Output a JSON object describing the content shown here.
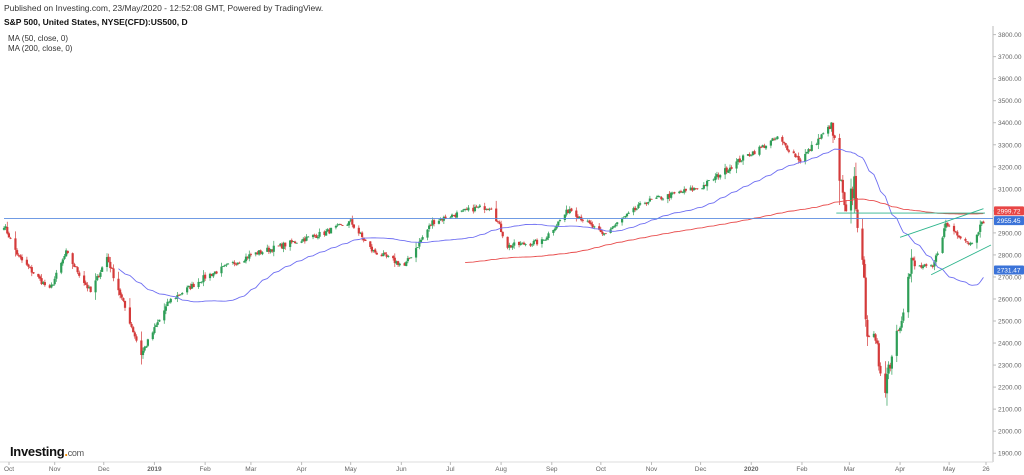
{
  "header": {
    "published": "Published on Investing.com, 23/May/2020 - 12:52:08 GMT, Powered by TradingView.",
    "symbol": "S&P 500, United States, NYSE(CFD):US500, D",
    "indicators": [
      "MA (50, close, 0)",
      "MA (200, close, 0)"
    ]
  },
  "logo": {
    "name": "Investing",
    "suffix": "com"
  },
  "colors": {
    "up": "#2e9e57",
    "down": "#d43a3a",
    "ma50": "#6f6ff2",
    "ma200": "#e84c4c",
    "hline": "#5b8de0",
    "trend": "#2eb58d",
    "price_box": "#3b73d8",
    "ma200_box": "#e84545",
    "ma50_box": "#3b73d8"
  },
  "chart_data": {
    "type": "candlestick",
    "x_tick_labels": [
      "Oct",
      "Nov",
      "Dec",
      "2019",
      "Feb",
      "Mar",
      "Apr",
      "May",
      "Jun",
      "Jul",
      "Aug",
      "Sep",
      "Oct",
      "Nov",
      "Dec",
      "2020",
      "Feb",
      "Mar",
      "Apr",
      "May",
      "26"
    ],
    "y_tick_labels": [
      "1900.00",
      "2000.00",
      "2100.00",
      "2200.00",
      "2300.00",
      "2400.00",
      "2500.00",
      "2600.00",
      "2700.00",
      "2800.00",
      "2900.00",
      "3000.00",
      "3100.00",
      "3200.00",
      "3300.00",
      "3400.00",
      "3500.00",
      "3600.00",
      "3700.00",
      "3800.00"
    ],
    "ylim": [
      1860,
      3830
    ],
    "keypoints": [
      {
        "date": "2018-10-01",
        "close": 2935
      },
      {
        "date": "2018-10-10",
        "close": 2790
      },
      {
        "date": "2018-10-29",
        "close": 2640
      },
      {
        "date": "2018-11-08",
        "close": 2810
      },
      {
        "date": "2018-11-23",
        "close": 2630
      },
      {
        "date": "2018-12-03",
        "close": 2790
      },
      {
        "date": "2018-12-24",
        "close": 2350
      },
      {
        "date": "2019-01-10",
        "close": 2590
      },
      {
        "date": "2019-02-01",
        "close": 2700
      },
      {
        "date": "2019-03-01",
        "close": 2800
      },
      {
        "date": "2019-04-15",
        "close": 2900
      },
      {
        "date": "2019-05-01",
        "close": 2950
      },
      {
        "date": "2019-05-14",
        "close": 2820
      },
      {
        "date": "2019-06-03",
        "close": 2750
      },
      {
        "date": "2019-06-20",
        "close": 2950
      },
      {
        "date": "2019-07-15",
        "close": 3010
      },
      {
        "date": "2019-07-26",
        "close": 3020
      },
      {
        "date": "2019-08-05",
        "close": 2840
      },
      {
        "date": "2019-08-26",
        "close": 2860
      },
      {
        "date": "2019-09-12",
        "close": 3010
      },
      {
        "date": "2019-10-02",
        "close": 2890
      },
      {
        "date": "2019-10-28",
        "close": 3040
      },
      {
        "date": "2019-12-02",
        "close": 3110
      },
      {
        "date": "2019-12-27",
        "close": 3240
      },
      {
        "date": "2020-01-17",
        "close": 3330
      },
      {
        "date": "2020-01-31",
        "close": 3230
      },
      {
        "date": "2020-02-19",
        "close": 3390
      },
      {
        "date": "2020-02-28",
        "close": 2950
      },
      {
        "date": "2020-03-04",
        "close": 3130
      },
      {
        "date": "2020-03-12",
        "close": 2480
      },
      {
        "date": "2020-03-23",
        "close": 2230
      },
      {
        "date": "2020-04-08",
        "close": 2750
      },
      {
        "date": "2020-04-21",
        "close": 2740
      },
      {
        "date": "2020-04-29",
        "close": 2940
      },
      {
        "date": "2020-05-14",
        "close": 2850
      },
      {
        "date": "2020-05-22",
        "close": 2955
      }
    ],
    "ma200_start": {
      "date": "2019-07-10",
      "value": 2780
    },
    "horizontal_lines": [
      2965
    ],
    "price_labels": {
      "ma200": "2999.72",
      "last_close": "2955.45",
      "ma50": "2731.47"
    },
    "price_values": {
      "ma200": 2999.72,
      "last_close": 2955.45,
      "ma50": 2731.47
    }
  }
}
